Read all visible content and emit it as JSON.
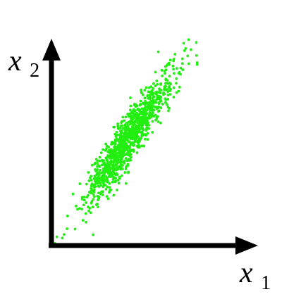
{
  "colors": {
    "points": "#22ee11",
    "axes": "#000000",
    "background": "#ffffff"
  },
  "chart_data": {
    "type": "scatter",
    "title": "",
    "xlabel": "x1",
    "ylabel": "x2",
    "xlabel_main": "x",
    "xlabel_sub": "1",
    "ylabel_main": "x",
    "ylabel_sub": "2",
    "xlim": [
      0,
      10
    ],
    "ylim": [
      0,
      10
    ],
    "grid": false,
    "legend": "none",
    "ticks": "none",
    "distribution": {
      "kind": "bivariate-normal",
      "n_points": 1100,
      "mean": [
        4.3,
        5.0
      ],
      "std": [
        1.2,
        1.5
      ],
      "correlation": 0.92,
      "seed": 7
    },
    "notable_points": [
      {
        "x": 0.2,
        "y": 0.1
      },
      {
        "x": 0.3,
        "y": 0.4
      },
      {
        "x": 0.6,
        "y": 0.35
      },
      {
        "x": 2.3,
        "y": 0.5
      },
      {
        "x": 7.3,
        "y": 9.4
      },
      {
        "x": 7.7,
        "y": 9.1
      },
      {
        "x": 5.9,
        "y": 9.0
      }
    ]
  }
}
